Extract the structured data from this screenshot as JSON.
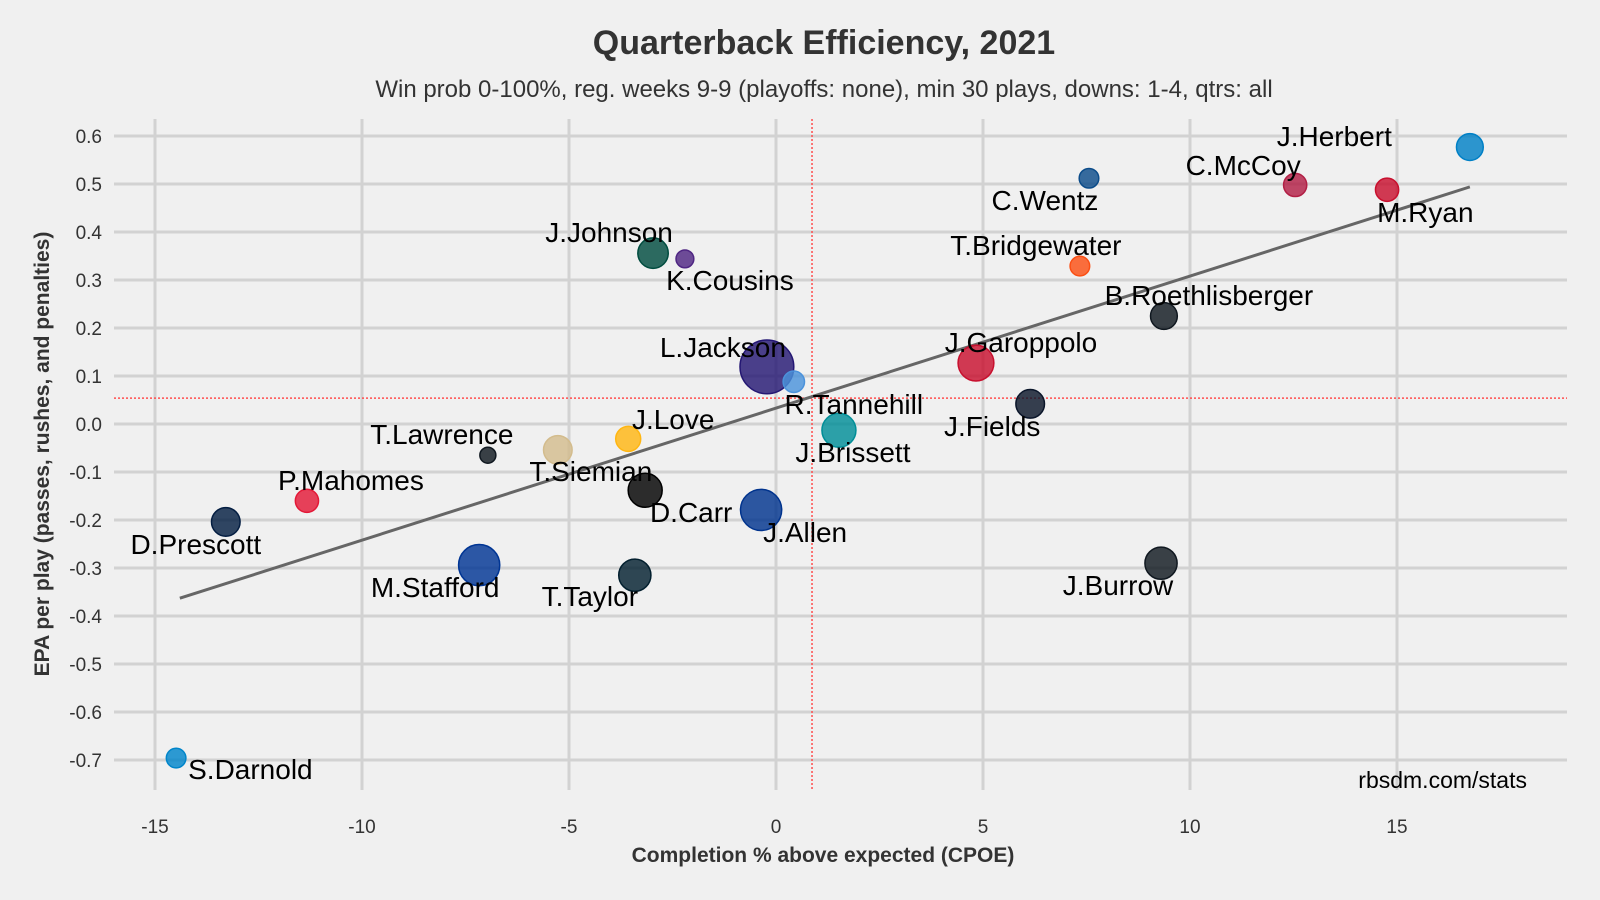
{
  "chart_data": {
    "type": "scatter",
    "title": "Quarterback Efficiency, 2021",
    "subtitle": "Win prob 0-100%, reg. weeks 9-9 (playoffs: none), min 30 plays, downs: 1-4, qtrs: all",
    "xlabel": "Completion % above expected (CPOE)",
    "ylabel": "EPA per play (passes, rushes, and penalties)",
    "xlim": [
      -16.0,
      18.3
    ],
    "ylim": [
      -0.76,
      0.64
    ],
    "xticks": [
      "-15",
      "-10",
      "-5",
      "0",
      "5",
      "10",
      "15"
    ],
    "xtick_values": [
      -15,
      -10,
      -5,
      0,
      5,
      10,
      15
    ],
    "yticks": [
      "0.6",
      "0.5",
      "0.4",
      "0.3",
      "0.2",
      "0.1",
      "0.0",
      "-0.1",
      "-0.2",
      "-0.3",
      "-0.4",
      "-0.5",
      "-0.6",
      "-0.7"
    ],
    "ytick_values": [
      0.6,
      0.5,
      0.4,
      0.3,
      0.2,
      0.1,
      0.0,
      -0.1,
      -0.2,
      -0.3,
      -0.4,
      -0.5,
      -0.6,
      -0.7
    ],
    "grid": true,
    "credit": "rbsdm.com/stats",
    "reference_lines": {
      "mean_epa": 0.054,
      "mean_cpoe": 0.87,
      "color": "#ff4d4d"
    },
    "trend_line": {
      "x": [
        -14.4,
        16.76
      ],
      "y": [
        -0.363,
        0.494
      ],
      "color": "#666666"
    },
    "points": [
      {
        "name": "J.Herbert",
        "cpoe": 16.76,
        "epa": 0.577,
        "plays": 42,
        "color": "#0080c6"
      },
      {
        "name": "M.Ryan",
        "cpoe": 14.76,
        "epa": 0.488,
        "plays": 38,
        "color": "#c8102e"
      },
      {
        "name": "C.McCoy",
        "cpoe": 12.54,
        "epa": 0.498,
        "plays": 38,
        "color": "#b21f45"
      },
      {
        "name": "C.Wentz",
        "cpoe": 7.56,
        "epa": 0.512,
        "plays": 34,
        "color": "#0c4c8a"
      },
      {
        "name": "T.Bridgewater",
        "cpoe": 7.34,
        "epa": 0.329,
        "plays": 34,
        "color": "#fb4f14"
      },
      {
        "name": "B.Roethlisberger",
        "cpoe": 9.37,
        "epa": 0.225,
        "plays": 42,
        "color": "#101820"
      },
      {
        "name": "J.Garoppolo",
        "cpoe": 4.83,
        "epa": 0.127,
        "plays": 52,
        "color": "#c8102e"
      },
      {
        "name": "J.Fields",
        "cpoe": 6.14,
        "epa": 0.042,
        "plays": 44,
        "color": "#0b162a"
      },
      {
        "name": "J.Johnson",
        "cpoe": -2.97,
        "epa": 0.356,
        "plays": 46,
        "color": "#004c3f"
      },
      {
        "name": "K.Cousins",
        "cpoe": -2.2,
        "epa": 0.344,
        "plays": 32,
        "color": "#4f2683"
      },
      {
        "name": "L.Jackson",
        "cpoe": -0.22,
        "epa": 0.119,
        "plays": 72,
        "color": "#241773"
      },
      {
        "name": "R.Tannehill",
        "cpoe": 0.43,
        "epa": 0.088,
        "plays": 36,
        "color": "#4b92db"
      },
      {
        "name": "J.Brissett",
        "cpoe": 1.52,
        "epa": -0.013,
        "plays": 50,
        "color": "#008e97"
      },
      {
        "name": "J.Love",
        "cpoe": -3.57,
        "epa": -0.031,
        "plays": 40,
        "color": "#ffb612"
      },
      {
        "name": "T.Siemian",
        "cpoe": -5.27,
        "epa": -0.054,
        "plays": 44,
        "color": "#d3bc8d"
      },
      {
        "name": "T.Lawrence",
        "cpoe": -6.96,
        "epa": -0.065,
        "plays": 30,
        "color": "#101820"
      },
      {
        "name": "D.Carr",
        "cpoe": -3.16,
        "epa": -0.138,
        "plays": 50,
        "color": "#000000"
      },
      {
        "name": "J.Allen",
        "cpoe": -0.36,
        "epa": -0.179,
        "plays": 58,
        "color": "#00338d"
      },
      {
        "name": "P.Mahomes",
        "cpoe": -11.33,
        "epa": -0.16,
        "plays": 38,
        "color": "#e31837"
      },
      {
        "name": "D.Prescott",
        "cpoe": -13.29,
        "epa": -0.204,
        "plays": 44,
        "color": "#041e42"
      },
      {
        "name": "M.Stafford",
        "cpoe": -7.17,
        "epa": -0.294,
        "plays": 58,
        "color": "#003594"
      },
      {
        "name": "T.Taylor",
        "cpoe": -3.41,
        "epa": -0.315,
        "plays": 48,
        "color": "#03202f"
      },
      {
        "name": "J.Burrow",
        "cpoe": 9.3,
        "epa": -0.29,
        "plays": 48,
        "color": "#101820"
      },
      {
        "name": "S.Darnold",
        "cpoe": -14.49,
        "epa": -0.696,
        "plays": 34,
        "color": "#0085ca"
      }
    ]
  }
}
